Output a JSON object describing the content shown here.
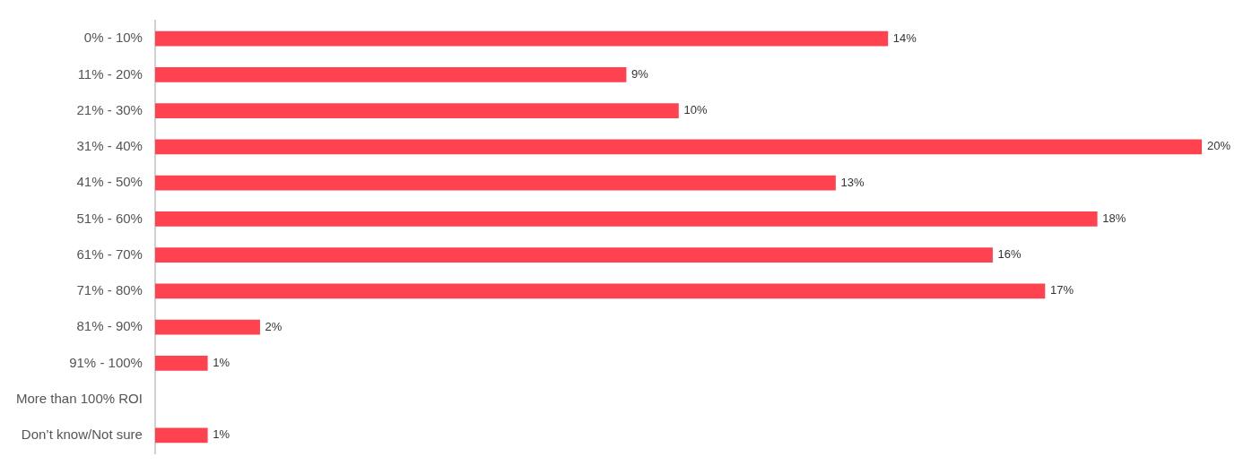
{
  "chart_data": {
    "type": "bar",
    "orientation": "horizontal",
    "categories": [
      "0% - 10%",
      "11% - 20%",
      "21% - 30%",
      "31% - 40%",
      "41% - 50%",
      "51% - 60%",
      "61% - 70%",
      "71% - 80%",
      "81% - 90%",
      "91% - 100%",
      "More than 100% ROI",
      "Don’t know/Not sure"
    ],
    "values": [
      14,
      9,
      10,
      20,
      13,
      18,
      16,
      17,
      2,
      1,
      null,
      1
    ],
    "value_labels": [
      "14%",
      "9%",
      "10%",
      "20%",
      "13%",
      "18%",
      "16%",
      "17%",
      "2%",
      "1%",
      null,
      "1%"
    ],
    "color": "#ff4250",
    "xlim": [
      0,
      20
    ],
    "grid": false,
    "data_labels": true,
    "tick_labels": "y"
  }
}
